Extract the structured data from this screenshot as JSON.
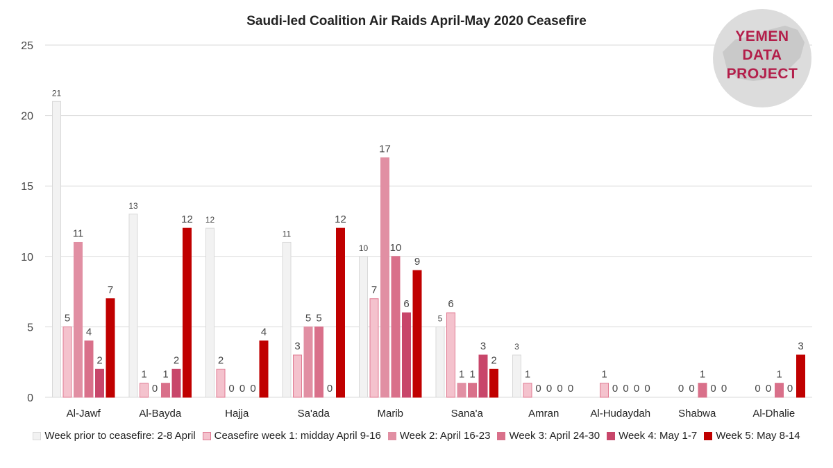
{
  "chart_data": {
    "type": "bar",
    "title": "Saudi-led Coalition Air Raids April-May 2020 Ceasefire",
    "categories": [
      "Al-Jawf",
      "Al-Bayda",
      "Hajja",
      "Sa'ada",
      "Marib",
      "Sana'a",
      "Amran",
      "Al-Hudaydah",
      "Shabwa",
      "Al-Dhalie"
    ],
    "ylim": [
      0,
      25
    ],
    "yticks": [
      0,
      5,
      10,
      15,
      20,
      25
    ],
    "grid": true,
    "legend_position": "bottom",
    "series": [
      {
        "name": "Week prior to ceasefire: 2-8 April",
        "color": "#f2f2f2",
        "stroke": "#d9d9d9",
        "values": [
          21,
          13,
          12,
          11,
          10,
          5,
          3,
          null,
          null,
          null
        ]
      },
      {
        "name": "Ceasefire week 1: midday April 9-16",
        "color": "#f4c2cd",
        "stroke": "#e07a92",
        "values": [
          5,
          1,
          2,
          3,
          7,
          6,
          1,
          1,
          0,
          0
        ]
      },
      {
        "name": "Week 2: April 16-23",
        "color": "#e18fa3",
        "stroke": "#e18fa3",
        "values": [
          11,
          0,
          0,
          5,
          17,
          1,
          0,
          0,
          0,
          0
        ]
      },
      {
        "name": "Week 3: April 24-30",
        "color": "#d9708a",
        "stroke": "#d9708a",
        "values": [
          4,
          1,
          0,
          5,
          10,
          1,
          0,
          0,
          1,
          1
        ]
      },
      {
        "name": "Week 4: May 1-7",
        "color": "#c8466a",
        "stroke": "#c8466a",
        "values": [
          2,
          2,
          0,
          0,
          6,
          3,
          0,
          0,
          0,
          0
        ]
      },
      {
        "name": "Week 5: May 8-14",
        "color": "#c00000",
        "stroke": "#c00000",
        "values": [
          7,
          12,
          4,
          12,
          9,
          2,
          0,
          0,
          0,
          3
        ]
      }
    ]
  },
  "logo": {
    "line1": "YEMEN",
    "line2": "DATA",
    "line3": "PROJECT"
  }
}
